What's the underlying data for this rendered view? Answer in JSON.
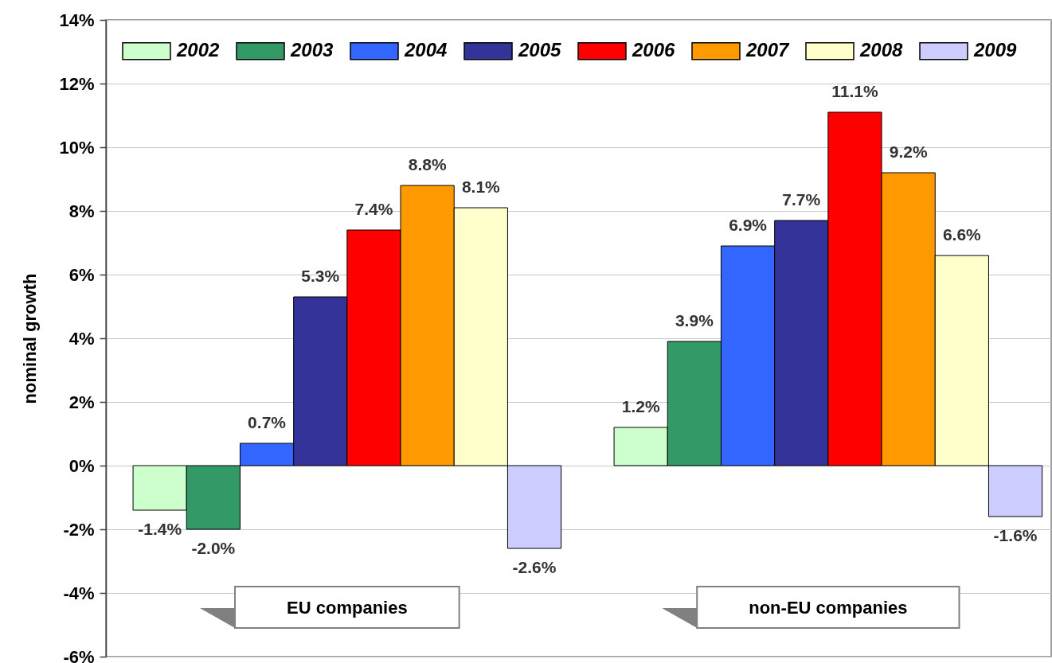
{
  "chart_data": {
    "type": "bar",
    "ylabel": "nominal growth",
    "categories": [
      "EU companies",
      "non-EU companies"
    ],
    "series": [
      {
        "name": "2002",
        "color": "#ccffcc",
        "values": [
          -1.4,
          1.2
        ],
        "value_labels": [
          "-1.4%",
          "1.2%"
        ]
      },
      {
        "name": "2003",
        "color": "#339966",
        "values": [
          -2.0,
          3.9
        ],
        "value_labels": [
          "-2.0%",
          "3.9%"
        ]
      },
      {
        "name": "2004",
        "color": "#3366ff",
        "values": [
          0.7,
          6.9
        ],
        "value_labels": [
          "0.7%",
          "6.9%"
        ]
      },
      {
        "name": "2005",
        "color": "#333399",
        "values": [
          5.3,
          7.7
        ],
        "value_labels": [
          "5.3%",
          "7.7%"
        ]
      },
      {
        "name": "2006",
        "color": "#ff0000",
        "values": [
          7.4,
          11.1
        ],
        "value_labels": [
          "7.4%",
          "11.1%"
        ]
      },
      {
        "name": "2007",
        "color": "#ff9900",
        "values": [
          8.8,
          9.2
        ],
        "value_labels": [
          "8.8%",
          "9.2%"
        ]
      },
      {
        "name": "2008",
        "color": "#ffffcc",
        "values": [
          8.1,
          6.6
        ],
        "value_labels": [
          "8.1%",
          "6.6%"
        ]
      },
      {
        "name": "2009",
        "color": "#ccccff",
        "values": [
          -2.6,
          -1.6
        ],
        "value_labels": [
          "-2.6%",
          "-1.6%"
        ]
      }
    ],
    "ylim": [
      -6,
      14
    ],
    "yticks": [
      {
        "value": -6,
        "label": "-6%"
      },
      {
        "value": -4,
        "label": "-4%"
      },
      {
        "value": -2,
        "label": "-2%"
      },
      {
        "value": 0,
        "label": "0%"
      },
      {
        "value": 2,
        "label": "2%"
      },
      {
        "value": 4,
        "label": "4%"
      },
      {
        "value": 6,
        "label": "6%"
      },
      {
        "value": 8,
        "label": "8%"
      },
      {
        "value": 10,
        "label": "10%"
      },
      {
        "value": 12,
        "label": "12%"
      },
      {
        "value": 14,
        "label": "14%"
      }
    ],
    "grid": "y",
    "legend": "top"
  }
}
